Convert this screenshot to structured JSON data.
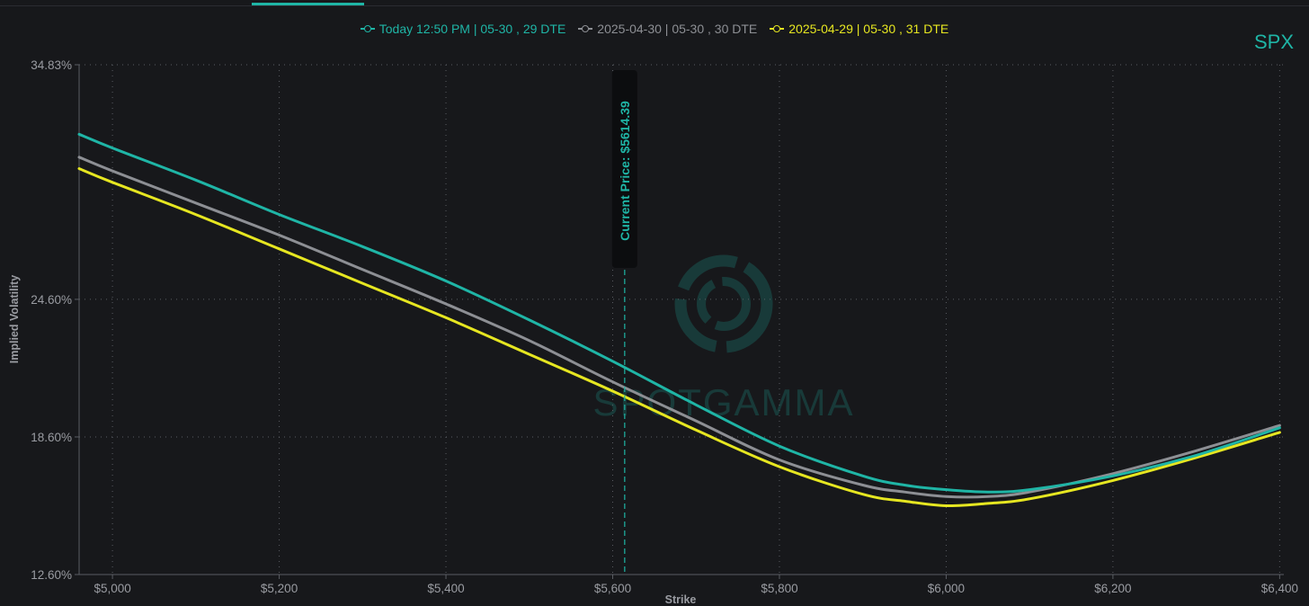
{
  "ticker": "SPX",
  "chart_data": {
    "type": "line",
    "xlabel": "Strike",
    "ylabel": "Implied Volatility",
    "xlim": [
      4960,
      6405
    ],
    "ylim": [
      12.6,
      34.83
    ],
    "x_ticks": [
      5000,
      5200,
      5400,
      5600,
      5800,
      6000,
      6200,
      6400
    ],
    "x_tick_labels": [
      "$5,000",
      "$5,200",
      "$5,400",
      "$5,600",
      "$5,800",
      "$6,000",
      "$6,200",
      "$6,400"
    ],
    "y_ticks": [
      12.6,
      18.6,
      24.6,
      34.83
    ],
    "y_tick_labels": [
      "12.60%",
      "18.60%",
      "24.60%",
      "34.83%"
    ],
    "grid": true,
    "legend_position": "top-center",
    "current_price": {
      "value": 5614.39,
      "label": "Current Price: $5614.39"
    },
    "watermark": "SPOTGAMMA",
    "x": [
      4960,
      5000,
      5100,
      5200,
      5300,
      5400,
      5500,
      5600,
      5700,
      5800,
      5900,
      5950,
      6000,
      6050,
      6100,
      6200,
      6300,
      6400
    ],
    "series": [
      {
        "name": "Today 12:50 PM | 05-30 , 29 DTE",
        "color": "#1fb5a6",
        "values": [
          31.8,
          31.2,
          29.8,
          28.3,
          26.9,
          25.4,
          23.7,
          21.9,
          20.0,
          18.2,
          16.9,
          16.5,
          16.3,
          16.2,
          16.3,
          16.9,
          17.8,
          19.0
        ]
      },
      {
        "name": "2025-04-30 | 05-30 , 30 DTE",
        "color": "#8d8f94",
        "values": [
          30.8,
          30.2,
          28.8,
          27.4,
          25.9,
          24.4,
          22.8,
          21.0,
          19.3,
          17.6,
          16.5,
          16.2,
          16.0,
          16.0,
          16.2,
          17.0,
          18.0,
          19.1
        ]
      },
      {
        "name": "2025-04-29 | 05-30 , 31 DTE",
        "color": "#e6e621",
        "values": [
          30.3,
          29.7,
          28.3,
          26.8,
          25.3,
          23.8,
          22.2,
          20.6,
          18.9,
          17.3,
          16.1,
          15.8,
          15.6,
          15.7,
          15.9,
          16.7,
          17.7,
          18.8
        ]
      }
    ]
  }
}
